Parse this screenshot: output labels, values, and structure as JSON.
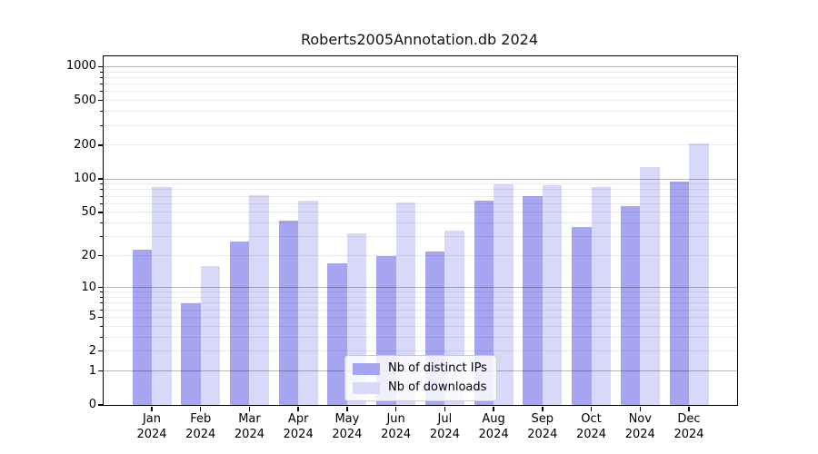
{
  "figure": {
    "title": "Roberts2005Annotation.db 2024"
  },
  "chart_data": {
    "type": "bar",
    "title": "Roberts2005Annotation.db 2024",
    "xlabel": "",
    "ylabel": "",
    "categories": [
      "Jan",
      "Feb",
      "Mar",
      "Apr",
      "May",
      "Jun",
      "Jul",
      "Aug",
      "Sep",
      "Oct",
      "Nov",
      "Dec"
    ],
    "year_label": "2024",
    "series": [
      {
        "name": "Nb of distinct IPs",
        "color": "#a5a5f2",
        "values": [
          23,
          7,
          27,
          42,
          17,
          20,
          22,
          64,
          70,
          37,
          57,
          95
        ]
      },
      {
        "name": "Nb of downloads",
        "color": "#d8d8f9",
        "values": [
          85,
          16,
          72,
          64,
          32,
          61,
          34,
          90,
          88,
          84,
          128,
          209
        ]
      }
    ],
    "y_axis": {
      "scale": "log1p",
      "ticks": [
        0,
        1,
        2,
        5,
        10,
        20,
        50,
        100,
        200,
        500,
        1000
      ],
      "ylim": [
        0,
        1235
      ]
    },
    "grid": {
      "major": true,
      "minor": true,
      "drawn_over_bars": true
    },
    "legend": {
      "position": "lower center inside",
      "entries": [
        "Nb of distinct IPs",
        "Nb of downloads"
      ]
    }
  }
}
